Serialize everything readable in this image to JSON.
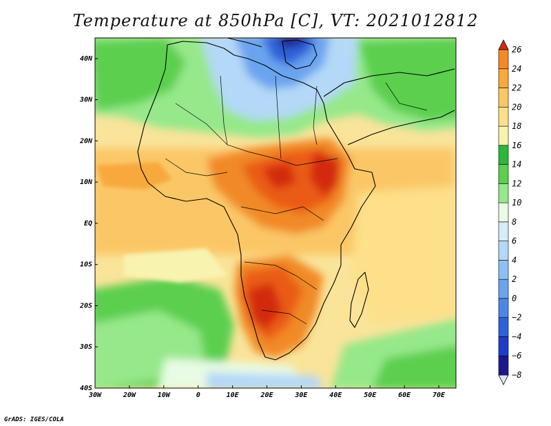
{
  "title": "Temperature at 850hPa [C], VT: 2021012812",
  "credit": "GrADS: IGES/COLA",
  "map": {
    "lon_range": [
      -30,
      75
    ],
    "lat_range": [
      -40,
      45
    ],
    "lon_ticks": [
      {
        "value": -30,
        "label": "30W"
      },
      {
        "value": -20,
        "label": "20W"
      },
      {
        "value": -10,
        "label": "10W"
      },
      {
        "value": 0,
        "label": "0"
      },
      {
        "value": 10,
        "label": "10E"
      },
      {
        "value": 20,
        "label": "20E"
      },
      {
        "value": 30,
        "label": "30E"
      },
      {
        "value": 40,
        "label": "40E"
      },
      {
        "value": 50,
        "label": "50E"
      },
      {
        "value": 60,
        "label": "60E"
      },
      {
        "value": 70,
        "label": "70E"
      }
    ],
    "lat_ticks": [
      {
        "value": 40,
        "label": "40N"
      },
      {
        "value": 30,
        "label": "30N"
      },
      {
        "value": 20,
        "label": "20N"
      },
      {
        "value": 10,
        "label": "10N"
      },
      {
        "value": 0,
        "label": "EQ"
      },
      {
        "value": -10,
        "label": "10S"
      },
      {
        "value": -20,
        "label": "20S"
      },
      {
        "value": -30,
        "label": "30S"
      },
      {
        "value": -40,
        "label": "40S"
      }
    ]
  },
  "colorbar": {
    "levels": [
      -8,
      -6,
      -4,
      -2,
      0,
      2,
      4,
      6,
      8,
      10,
      12,
      14,
      16,
      18,
      20,
      22,
      24,
      26
    ],
    "colors": [
      "#1a1a8c",
      "#1e3cc8",
      "#2e62d9",
      "#4c87e8",
      "#6aa4ef",
      "#8ec0f4",
      "#b4d8f7",
      "#d6ecf8",
      "#e8fbe4",
      "#96e88a",
      "#5ccf4f",
      "#2db63a",
      "#f9f3b0",
      "#fde089",
      "#fbc766",
      "#f8a93c",
      "#f18a26",
      "#ea5b15",
      "#d32a10"
    ],
    "under_color": "#dde4fb",
    "over_color": "#d32a10"
  }
}
